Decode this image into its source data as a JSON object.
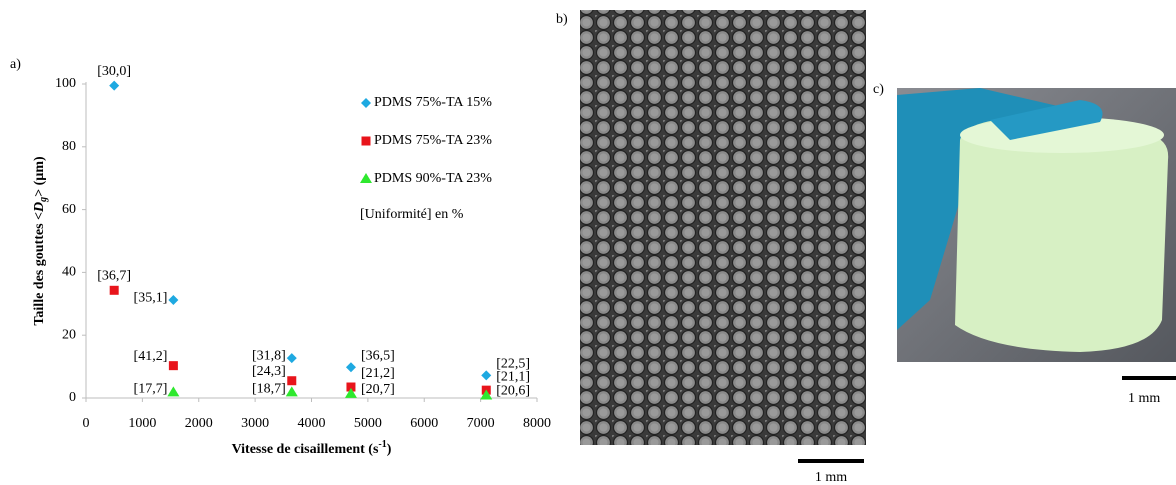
{
  "chart_data": {
    "type": "scatter",
    "panel_label": "a)",
    "ylabel": [
      "Taille des gouttes <",
      "D",
      "g",
      "> (µm)"
    ],
    "xlabel": [
      "Vitesse de cisaillement (s",
      "-1",
      ")"
    ],
    "xlim": [
      0,
      8000
    ],
    "xticks": [
      0,
      1000,
      2000,
      3000,
      4000,
      5000,
      6000,
      7000,
      8000
    ],
    "ylim": [
      0,
      100
    ],
    "yticks": [
      0,
      20,
      40,
      60,
      80,
      100
    ],
    "grid": false,
    "legend_note": "[Uniformité] en %",
    "series": [
      {
        "name": "PDMS 75%-TA 15%",
        "color": "#1ea9e1",
        "marker": "diamond",
        "x": [
          500,
          1550,
          3650,
          4700,
          7100
        ],
        "values": [
          99.5,
          31.2,
          12.7,
          9.8,
          7.2
        ],
        "labels": [
          "[30,0]",
          "[35,1]",
          "[31,8]",
          "[36,5]",
          "[22,5]"
        ]
      },
      {
        "name": "PDMS 75%-TA 23%",
        "color": "#e8141b",
        "marker": "square",
        "x": [
          500,
          1550,
          3650,
          4700,
          7100
        ],
        "values": [
          34.3,
          10.3,
          5.5,
          3.5,
          2.5
        ],
        "labels": [
          "[36,7]",
          "[41,2]",
          "[24,3]",
          "[21,2]",
          "[21,1]"
        ]
      },
      {
        "name": "PDMS 90%-TA 23%",
        "color": "#2ee82e",
        "marker": "triangle",
        "x": [
          1550,
          3650,
          4700,
          7100
        ],
        "values": [
          1.8,
          1.8,
          1.3,
          0.8
        ],
        "labels": [
          "[17,7]",
          "[18,7]",
          "[20,7]",
          "[20,6]"
        ]
      }
    ]
  },
  "panels": {
    "b": {
      "label": "b)",
      "scale": "1 mm"
    },
    "c": {
      "label": "c)",
      "scale": "1 mm"
    }
  }
}
